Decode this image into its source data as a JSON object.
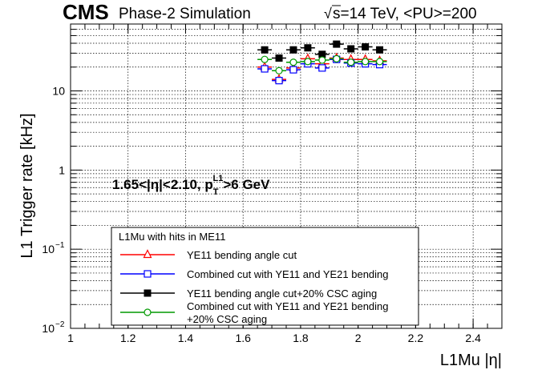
{
  "header": {
    "experiment": "CMS",
    "subtitle": "Phase-2 Simulation",
    "sqrt_symbol": "√",
    "energy": "s=14 TeV, <PU>=200"
  },
  "annotation": {
    "cut_prefix": "1.65<|η|<2.10, p",
    "cut_sub": "T",
    "cut_sup": "L1",
    "cut_suffix": ">6 GeV"
  },
  "legend": {
    "title": "L1Mu with hits in ME11",
    "entries": [
      {
        "label": "YE11 bending angle cut"
      },
      {
        "label": "Combined cut with YE11 and YE21 bending"
      },
      {
        "label": "YE11 bending angle cut+20% CSC aging"
      },
      {
        "label": "Combined cut with YE11 and YE21 bending",
        "label2": "+20% CSC aging"
      }
    ]
  },
  "chart_data": {
    "type": "scatter",
    "xlabel": "L1Mu |η|",
    "ylabel": "L1 Trigger rate [kHz]",
    "xlim": [
      1.0,
      2.5
    ],
    "ylim": [
      0.01,
      70
    ],
    "yscale": "log",
    "grid": true,
    "legend_position": "bottom-left",
    "x_ticks": [
      "1",
      "1.2",
      "1.4",
      "1.6",
      "1.8",
      "2",
      "2.2",
      "2.4"
    ],
    "x_tick_values": [
      1.0,
      1.2,
      1.4,
      1.6,
      1.8,
      2.0,
      2.2,
      2.4
    ],
    "y_ticks": [
      {
        "value": 10,
        "base": "10",
        "exp": ""
      },
      {
        "value": 1,
        "base": "1",
        "exp": ""
      },
      {
        "value": 0.1,
        "base": "10",
        "exp": "−1"
      },
      {
        "value": 0.01,
        "base": "10",
        "exp": "−2"
      }
    ],
    "x": [
      1.675,
      1.725,
      1.775,
      1.825,
      1.875,
      1.925,
      1.975,
      2.025,
      2.075
    ],
    "xerr": 0.025,
    "series": [
      {
        "name": "YE11 bending angle cut",
        "color": "#ff0000",
        "marker": "open-triangle",
        "values": [
          20.0,
          14.0,
          19.5,
          25.5,
          22.0,
          26.0,
          25.0,
          25.0,
          24.0
        ]
      },
      {
        "name": "Combined cut with YE11 and YE21 bending",
        "color": "#0000ff",
        "marker": "open-square",
        "values": [
          19.0,
          13.5,
          18.5,
          22.0,
          19.5,
          25.0,
          22.5,
          22.0,
          21.5
        ]
      },
      {
        "name": "YE11 bending angle cut+20% CSC aging",
        "color": "#000000",
        "marker": "filled-square",
        "values": [
          33.0,
          26.0,
          33.0,
          35.0,
          29.0,
          39.0,
          34.0,
          36.0,
          33.0
        ]
      },
      {
        "name": "Combined cut with YE11 and YE21 bending +20% CSC aging",
        "color": "#009900",
        "marker": "open-circle",
        "values": [
          25.0,
          18.0,
          23.0,
          23.5,
          24.5,
          25.5,
          23.0,
          23.5,
          23.5
        ]
      }
    ]
  }
}
